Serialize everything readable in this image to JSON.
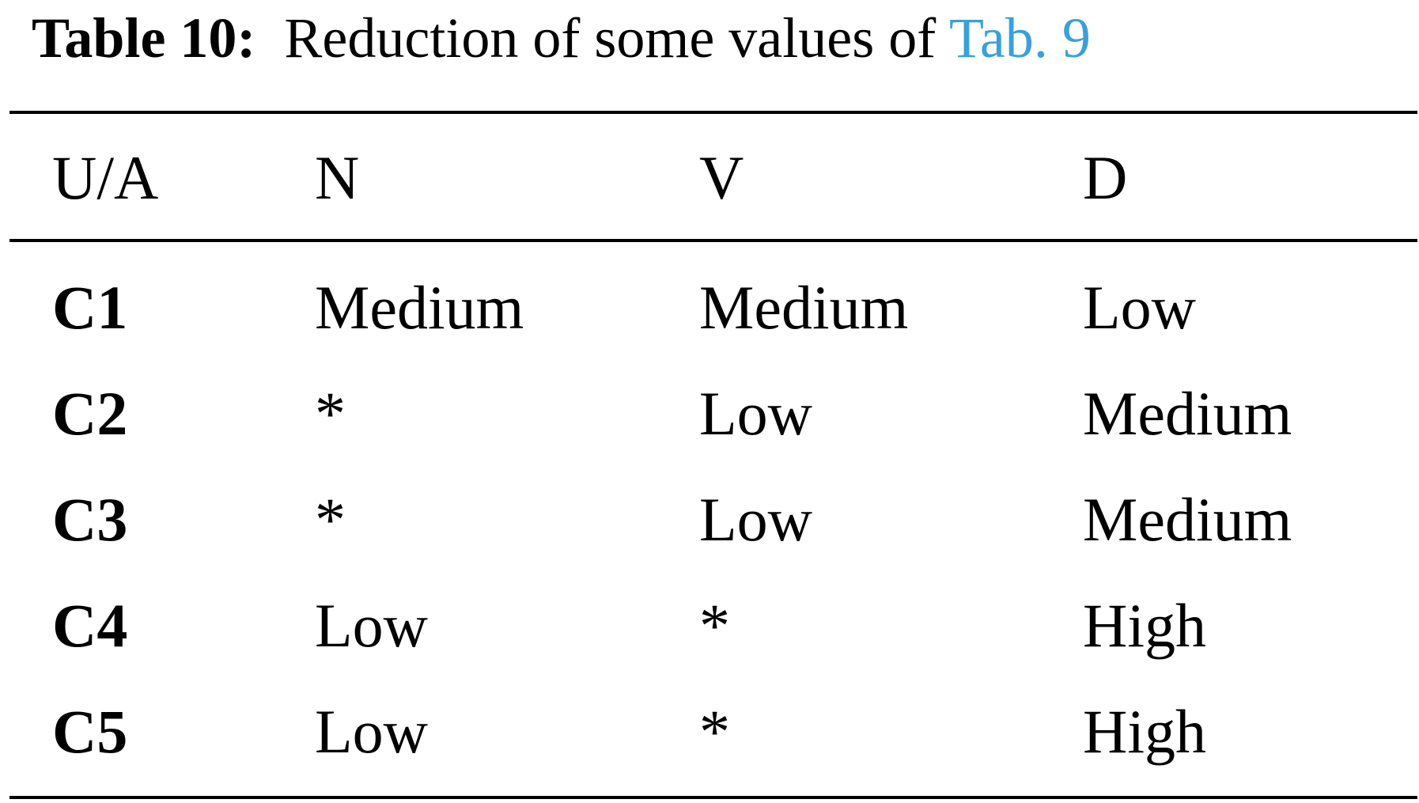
{
  "caption": {
    "label": "Table 10:",
    "text": "Reduction of some values of",
    "reference": "Tab. 9",
    "reference_color": "#3aa0d8"
  },
  "table": {
    "columns": [
      "U/A",
      "N",
      "V",
      "D"
    ],
    "rows": [
      {
        "id": "C1",
        "cells": [
          "Medium",
          "Medium",
          "Low"
        ]
      },
      {
        "id": "C2",
        "cells": [
          "*",
          "Low",
          "Medium"
        ]
      },
      {
        "id": "C3",
        "cells": [
          "*",
          "Low",
          "Medium"
        ]
      },
      {
        "id": "C4",
        "cells": [
          "Low",
          "*",
          "High"
        ]
      },
      {
        "id": "C5",
        "cells": [
          "Low",
          "*",
          "High"
        ]
      }
    ]
  }
}
